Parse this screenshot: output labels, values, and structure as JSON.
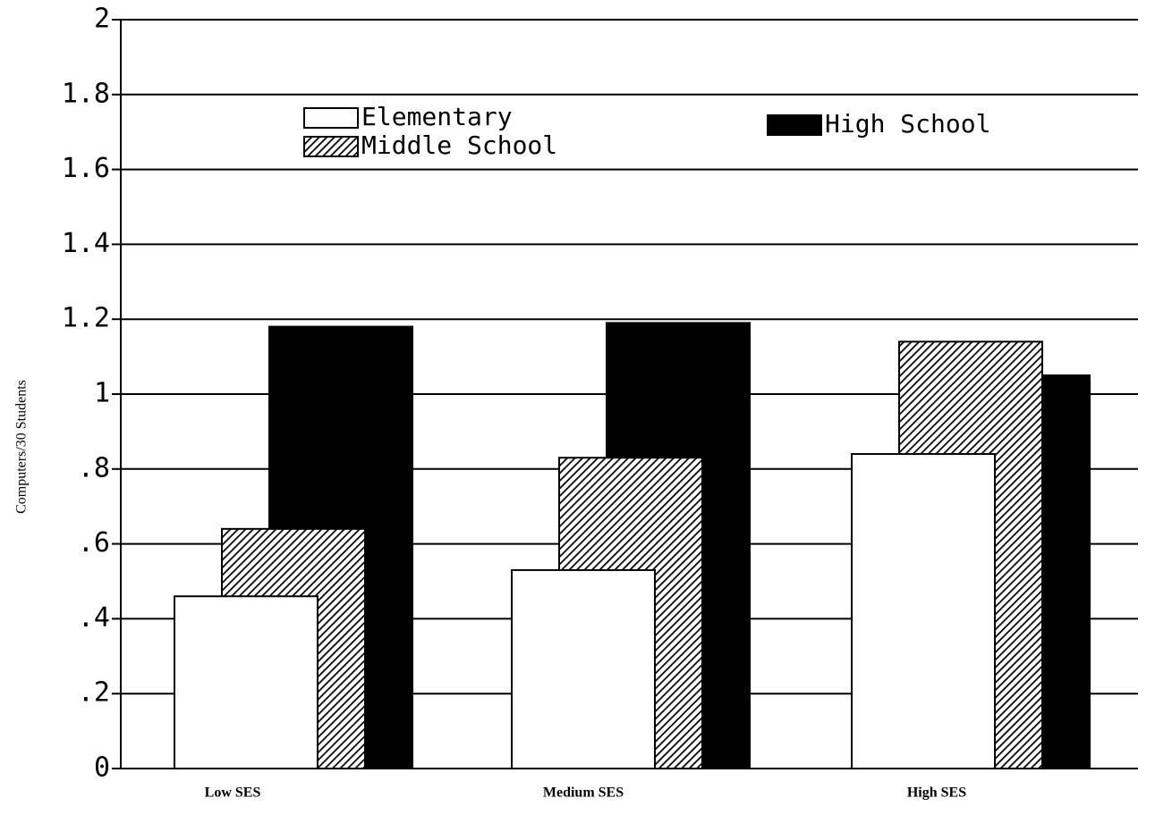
{
  "chart_data": {
    "type": "bar",
    "y_label": "Computers/30 Students",
    "categories": [
      "Low SES",
      "Medium SES",
      "High SES"
    ],
    "series": [
      {
        "name": "Elementary",
        "color": "#ffffff",
        "values": [
          0.46,
          0.53,
          0.84
        ]
      },
      {
        "name": "Middle School",
        "color": "hatched",
        "values": [
          0.64,
          0.83,
          1.14
        ]
      },
      {
        "name": "High School",
        "color": "#000000",
        "values": [
          1.18,
          1.19,
          1.05
        ]
      }
    ],
    "ylim": [
      0,
      2
    ],
    "yticks": [
      0,
      {
        "value": 0.2,
        "label": ".2"
      },
      {
        "value": 0.4,
        "label": ".4"
      },
      {
        "value": 0.6,
        "label": ".6"
      },
      {
        "value": 0.8,
        "label": ".8"
      },
      1,
      1.2,
      1.4,
      1.6,
      1.8,
      2
    ],
    "grid": true
  }
}
